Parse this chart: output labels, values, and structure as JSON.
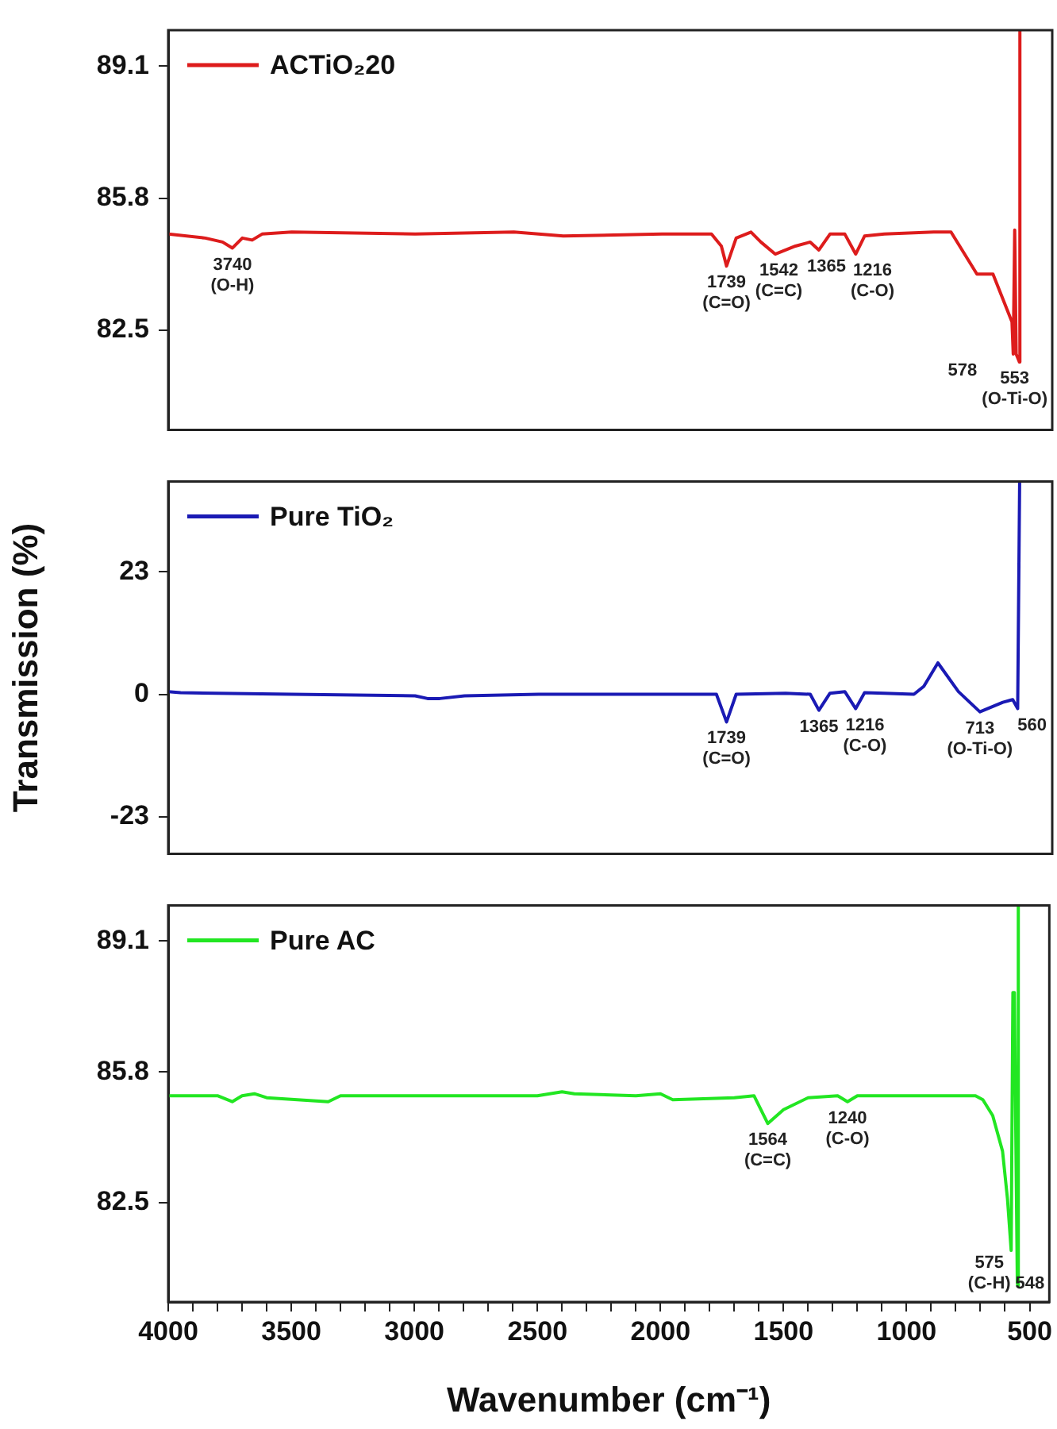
{
  "chart_data": [
    {
      "type": "line",
      "xlim": [
        4000,
        420
      ],
      "ylim": [
        80,
        90
      ],
      "yticks": [
        82.5,
        85.8,
        89.1
      ],
      "tick_labels": "y",
      "grid": false,
      "legend": "top left",
      "marker": "none",
      "line_style": "solid",
      "series": [
        {
          "name": "ACTiO₂20",
          "color": "#dd1c1c",
          "x": [
            4000,
            3850,
            3780,
            3740,
            3700,
            3660,
            3620,
            3500,
            3000,
            2600,
            2400,
            2000,
            1800,
            1760,
            1739,
            1700,
            1640,
            1600,
            1542,
            1460,
            1400,
            1365,
            1320,
            1260,
            1216,
            1180,
            1100,
            900,
            830,
            725,
            660,
            615,
            583,
            578,
            572,
            566,
            553,
            551
          ],
          "values": [
            84.9,
            84.8,
            84.7,
            84.55,
            84.8,
            84.75,
            84.9,
            84.95,
            84.9,
            84.95,
            84.85,
            84.9,
            84.9,
            84.6,
            84.1,
            84.8,
            84.95,
            84.7,
            84.4,
            84.6,
            84.7,
            84.5,
            84.9,
            84.9,
            84.4,
            84.85,
            84.9,
            84.95,
            84.95,
            83.9,
            83.9,
            83.2,
            82.7,
            81.9,
            85.0,
            81.9,
            81.7,
            90
          ]
        }
      ],
      "annotations": [
        {
          "text": "3740\n(O-H)",
          "x": 3740,
          "y": 84.55
        },
        {
          "text": "1739\n(C=O)",
          "x": 1739,
          "y": 84.1
        },
        {
          "text": "1542\n(C=C)",
          "x": 1542,
          "y": 84.4
        },
        {
          "text": "1365",
          "x": 1365,
          "y": 84.5
        },
        {
          "text": "1216\n(C-O)",
          "x": 1216,
          "y": 84.4
        },
        {
          "text": "578",
          "x": 578,
          "y": 81.9
        },
        {
          "text": "553\n(O-Ti-O)",
          "x": 553,
          "y": 81.7
        }
      ]
    },
    {
      "type": "line",
      "ylabel": "Transmission (%)",
      "xlim": [
        4000,
        420
      ],
      "ylim": [
        -30,
        40
      ],
      "yticks": [
        -23,
        0,
        23
      ],
      "tick_labels": "y",
      "grid": false,
      "legend": "top left",
      "marker": "none",
      "line_style": "solid",
      "series": [
        {
          "name": "Pure TiO₂",
          "color": "#1a1ab4",
          "x": [
            4000,
            3950,
            3500,
            3000,
            2950,
            2900,
            2800,
            2500,
            2000,
            1780,
            1739,
            1700,
            1500,
            1400,
            1365,
            1320,
            1260,
            1216,
            1180,
            1100,
            980,
            940,
            883,
            800,
            713,
            620,
            580,
            560,
            552
          ],
          "values": [
            0.5,
            0.3,
            0,
            -0.3,
            -0.8,
            -0.8,
            -0.3,
            0,
            0,
            0,
            -5.2,
            0,
            0.2,
            0,
            -3,
            0.2,
            0.5,
            -2.7,
            0.3,
            0.2,
            0,
            1.5,
            5.9,
            0.5,
            -3.3,
            -1.5,
            -1.0,
            -2.7,
            40
          ]
        }
      ],
      "annotations": [
        {
          "text": "1739\n(C=O)",
          "x": 1739,
          "y": -5.2
        },
        {
          "text": "1365",
          "x": 1365,
          "y": -3
        },
        {
          "text": "1216\n(C-O)",
          "x": 1216,
          "y": -2.7
        },
        {
          "text": "713\n(O-Ti-O)",
          "x": 713,
          "y": -3.3
        },
        {
          "text": "560",
          "x": 560,
          "y": -2.7
        }
      ]
    },
    {
      "type": "line",
      "xlabel": "Wavenumber (cm⁻¹)",
      "xlim": [
        4000,
        420
      ],
      "ylim": [
        80,
        90
      ],
      "yticks": [
        82.5,
        85.8,
        89.1
      ],
      "xticks": [
        4000,
        {
          "value": 3900,
          "label": null
        },
        {
          "value": 3800,
          "label": null
        },
        {
          "value": 3700,
          "label": null
        },
        {
          "value": 3600,
          "label": null
        },
        3500,
        {
          "value": 3400,
          "label": null
        },
        {
          "value": 3300,
          "label": null
        },
        {
          "value": 3200,
          "label": null
        },
        {
          "value": 3100,
          "label": null
        },
        3000,
        {
          "value": 2900,
          "label": null
        },
        {
          "value": 2800,
          "label": null
        },
        {
          "value": 2700,
          "label": null
        },
        {
          "value": 2600,
          "label": null
        },
        2500,
        {
          "value": 2400,
          "label": null
        },
        {
          "value": 2300,
          "label": null
        },
        {
          "value": 2200,
          "label": null
        },
        {
          "value": 2100,
          "label": null
        },
        2000,
        {
          "value": 1900,
          "label": null
        },
        {
          "value": 1800,
          "label": null
        },
        {
          "value": 1700,
          "label": null
        },
        {
          "value": 1600,
          "label": null
        },
        1500,
        {
          "value": 1400,
          "label": null
        },
        {
          "value": 1300,
          "label": null
        },
        {
          "value": 1200,
          "label": null
        },
        {
          "value": 1100,
          "label": null
        },
        1000,
        {
          "value": 900,
          "label": null
        },
        {
          "value": 800,
          "label": null
        },
        {
          "value": 700,
          "label": null
        },
        {
          "value": 600,
          "label": null
        },
        500
      ],
      "grid": false,
      "legend": "top left",
      "marker": "none",
      "line_style": "solid",
      "series": [
        {
          "name": "Pure AC",
          "color": "#22e622",
          "x": [
            4000,
            3800,
            3740,
            3700,
            3650,
            3600,
            3350,
            3300,
            3000,
            2500,
            2400,
            2350,
            2100,
            2000,
            1950,
            1700,
            1620,
            1564,
            1500,
            1400,
            1280,
            1240,
            1200,
            1000,
            850,
            720,
            690,
            650,
            610,
            590,
            575,
            568,
            562,
            550,
            548,
            546
          ],
          "values": [
            85.2,
            85.2,
            85.05,
            85.2,
            85.25,
            85.15,
            85.05,
            85.2,
            85.2,
            85.2,
            85.3,
            85.25,
            85.2,
            85.25,
            85.1,
            85.15,
            85.2,
            84.5,
            84.85,
            85.15,
            85.2,
            85.05,
            85.2,
            85.2,
            85.2,
            85.2,
            85.1,
            84.7,
            83.8,
            82.6,
            81.3,
            87.8,
            87.8,
            80.5,
            80.4,
            90
          ]
        }
      ],
      "annotations": [
        {
          "text": "1564\n(C=C)",
          "x": 1564,
          "y": 84.5
        },
        {
          "text": "1240\n(C-O)",
          "x": 1240,
          "y": 85.05
        },
        {
          "text": "575\n(C-H)",
          "x": 575,
          "y": 81.3
        },
        {
          "text": "548",
          "x": 548,
          "y": 80.4
        }
      ]
    }
  ]
}
